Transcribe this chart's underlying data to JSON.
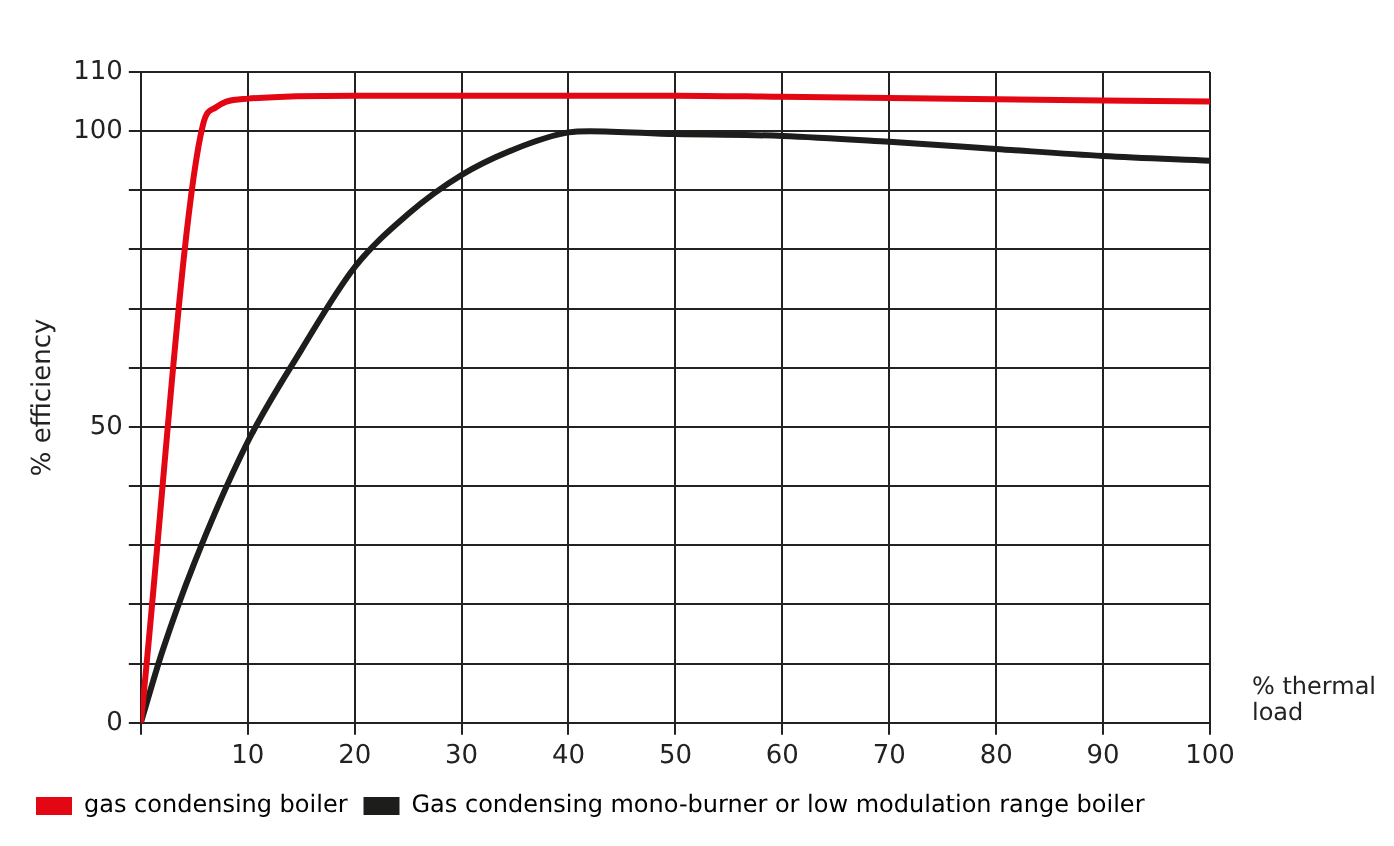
{
  "chart_data": {
    "type": "line",
    "xlabel": "% thermal load",
    "ylabel": "% efficiency",
    "xlim": [
      0,
      100
    ],
    "ylim": [
      0,
      110
    ],
    "xticks": [
      {
        "value": 0,
        "label": null
      },
      10,
      20,
      30,
      40,
      50,
      60,
      70,
      80,
      90,
      100
    ],
    "yticks": [
      0,
      {
        "value": 10,
        "label": null
      },
      {
        "value": 20,
        "label": null
      },
      {
        "value": 30,
        "label": null
      },
      {
        "value": 40,
        "label": null
      },
      50,
      {
        "value": 60,
        "label": null
      },
      {
        "value": 70,
        "label": null
      },
      {
        "value": 80,
        "label": null
      },
      {
        "value": 90,
        "label": null
      },
      100,
      110
    ],
    "grid": true,
    "legend": "bottom",
    "marker": "none",
    "line_style": "solid",
    "series": [
      {
        "name": "gas condensing boiler",
        "color": "#e30613",
        "x": [
          0,
          5.8,
          7,
          8,
          10,
          20,
          30,
          40,
          50,
          60,
          70,
          80,
          90,
          100
        ],
        "values": [
          0,
          101,
          104,
          105,
          105.5,
          106,
          106,
          106,
          106,
          105.8,
          105.6,
          105.4,
          105.2,
          105
        ]
      },
      {
        "name": "Gas condensing mono-burner or low modulation range boiler",
        "color": "#1d1d1b",
        "x": [
          0,
          2,
          5,
          10,
          15,
          20,
          25,
          30,
          35,
          40,
          42,
          50,
          60,
          70,
          80,
          90,
          100
        ],
        "values": [
          0,
          12,
          27,
          47.5,
          63,
          77,
          86,
          92.6,
          97,
          99.8,
          100,
          99.5,
          99.2,
          98.2,
          97,
          95.8,
          95
        ]
      }
    ]
  }
}
